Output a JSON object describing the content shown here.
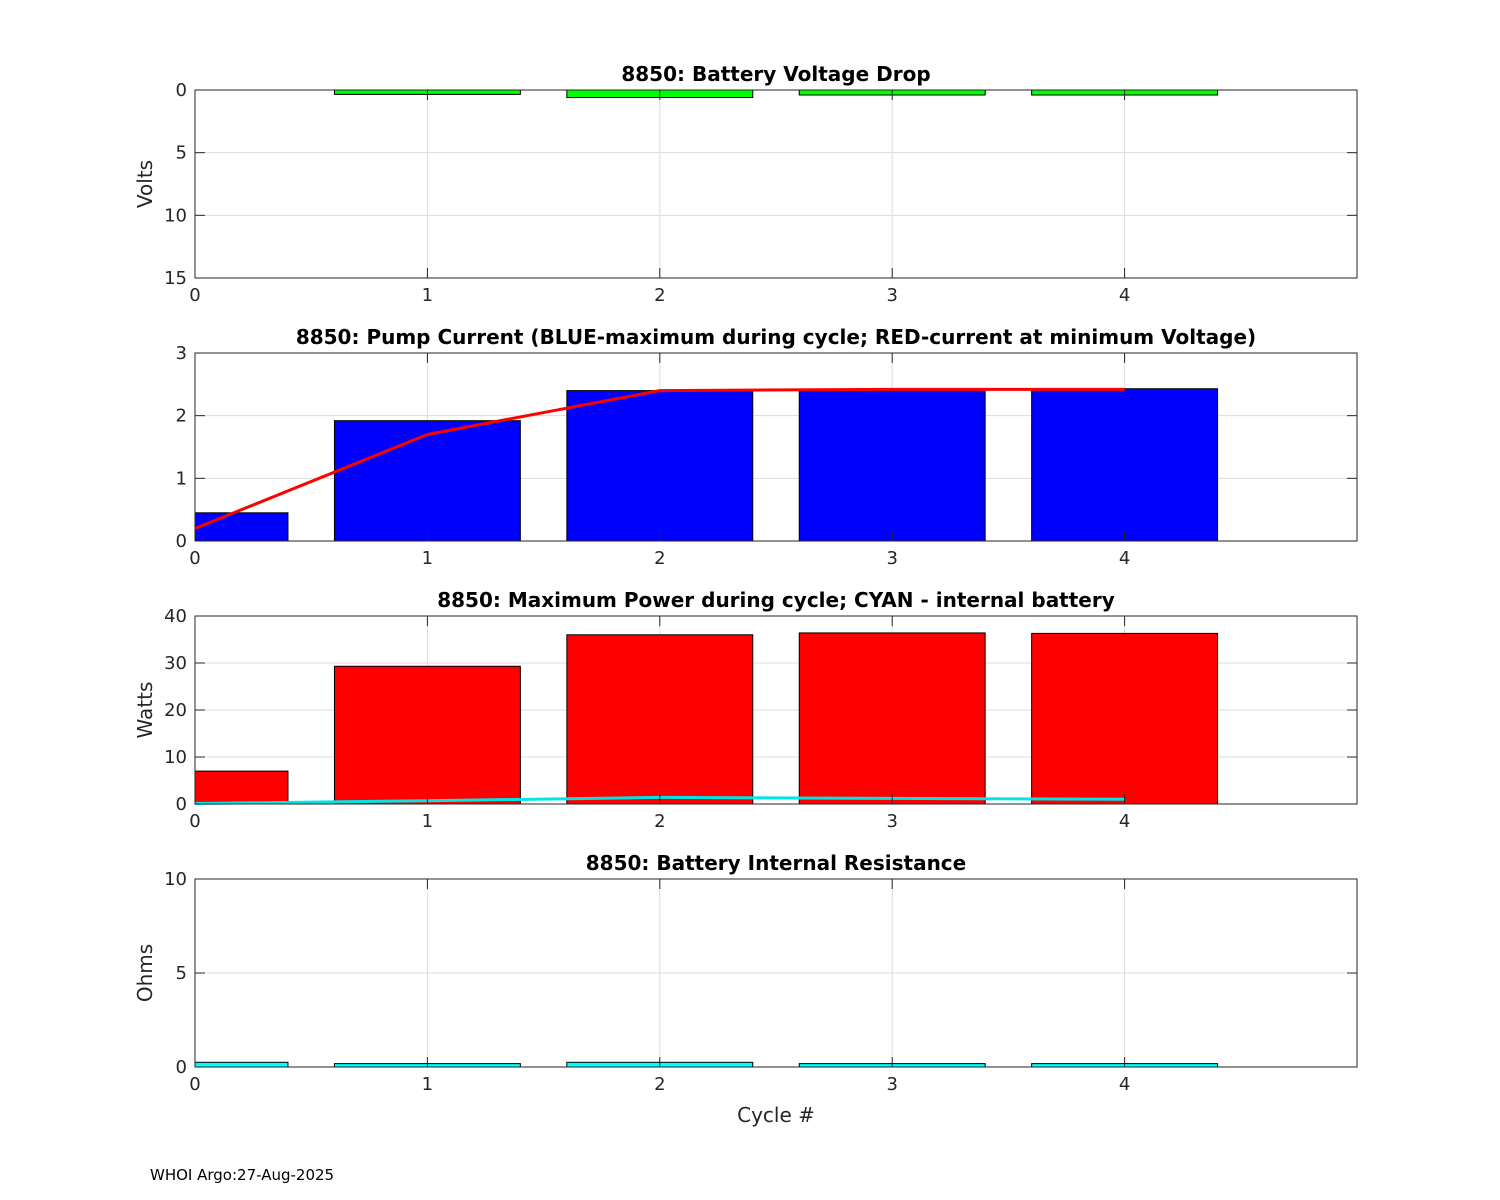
{
  "footer": "WHOI Argo:27-Aug-2025",
  "chart_data": [
    {
      "type": "bar",
      "title": "8850: Battery Voltage Drop",
      "ylabel": "Volts",
      "xlabel": "",
      "xlim": [
        0,
        5
      ],
      "ylim": [
        0,
        15
      ],
      "y_reversed": true,
      "xticks": [
        0,
        1,
        2,
        3,
        4
      ],
      "yticks": [
        0,
        5,
        10,
        15
      ],
      "bar_color": "#00ff00",
      "bar_width": 0.8,
      "bars": [
        {
          "x": 0,
          "value": 0.0
        },
        {
          "x": 1,
          "value": 0.35
        },
        {
          "x": 2,
          "value": 0.6
        },
        {
          "x": 3,
          "value": 0.4
        },
        {
          "x": 4,
          "value": 0.4
        }
      ]
    },
    {
      "type": "bar",
      "title": "8850: Pump Current (BLUE-maximum during cycle; RED-current at minimum Voltage)",
      "ylabel": "",
      "xlabel": "",
      "xlim": [
        0,
        5
      ],
      "ylim": [
        0,
        3
      ],
      "xticks": [
        0,
        1,
        2,
        3,
        4
      ],
      "yticks": [
        0,
        1,
        2,
        3
      ],
      "bar_color": "#0000ff",
      "bar_width": 0.8,
      "bars": [
        {
          "x": 0,
          "value": 0.45
        },
        {
          "x": 1,
          "value": 1.92
        },
        {
          "x": 2,
          "value": 2.4
        },
        {
          "x": 3,
          "value": 2.42
        },
        {
          "x": 4,
          "value": 2.43
        }
      ],
      "line": {
        "name": "current at minimum Voltage",
        "color": "#ff0000",
        "x": [
          0,
          1,
          2,
          3,
          4
        ],
        "y": [
          0.2,
          1.7,
          2.4,
          2.42,
          2.42
        ]
      }
    },
    {
      "type": "bar",
      "title": "8850: Maximum Power during cycle; CYAN - internal battery",
      "ylabel": "Watts",
      "xlabel": "",
      "xlim": [
        0,
        5
      ],
      "ylim": [
        0,
        40
      ],
      "xticks": [
        0,
        1,
        2,
        3,
        4
      ],
      "yticks": [
        0,
        10,
        20,
        30,
        40
      ],
      "bar_color": "#ff0000",
      "bar_width": 0.8,
      "bars": [
        {
          "x": 0,
          "value": 7.0
        },
        {
          "x": 1,
          "value": 29.3
        },
        {
          "x": 2,
          "value": 36.0
        },
        {
          "x": 3,
          "value": 36.4
        },
        {
          "x": 4,
          "value": 36.3
        }
      ],
      "line": {
        "name": "internal battery",
        "color": "#00e5e5",
        "x": [
          0,
          1,
          2,
          3,
          4
        ],
        "y": [
          0.1,
          0.7,
          1.4,
          1.2,
          1.0
        ]
      }
    },
    {
      "type": "bar",
      "title": "8850: Battery Internal Resistance",
      "ylabel": "Ohms",
      "xlabel": "Cycle #",
      "xlim": [
        0,
        5
      ],
      "ylim": [
        0,
        10
      ],
      "xticks": [
        0,
        1,
        2,
        3,
        4
      ],
      "yticks": [
        0,
        5,
        10
      ],
      "bar_color": "#00ffff",
      "bar_width": 0.8,
      "bars": [
        {
          "x": 0,
          "value": 0.25
        },
        {
          "x": 1,
          "value": 0.18
        },
        {
          "x": 2,
          "value": 0.25
        },
        {
          "x": 3,
          "value": 0.18
        },
        {
          "x": 4,
          "value": 0.18
        }
      ]
    }
  ]
}
